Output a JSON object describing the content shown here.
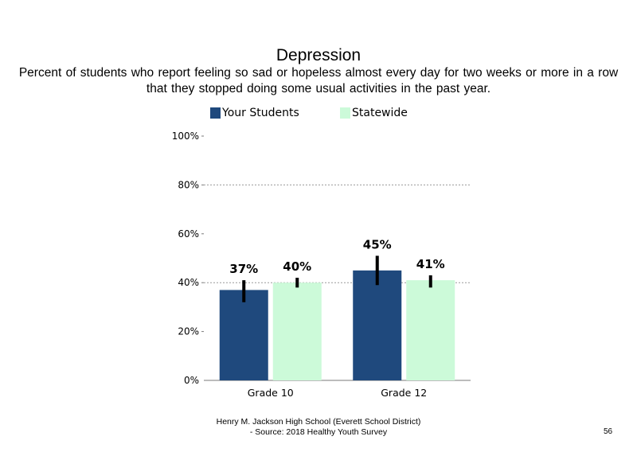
{
  "chart_data": {
    "type": "bar",
    "title": "Depression",
    "subtitle": "Percent of students who report feeling so sad or hopeless almost every day for two weeks or more in a row that they stopped doing some usual activities in the past year.",
    "categories": [
      "Grade 10",
      "Grade 12"
    ],
    "series": [
      {
        "name": "Your Students",
        "color": "#1f497d",
        "values": [
          37,
          45
        ],
        "labels": [
          "37%",
          "45%"
        ],
        "error_low": [
          32,
          39
        ],
        "error_high": [
          41,
          51
        ]
      },
      {
        "name": "Statewide",
        "color": "#ccfad9",
        "values": [
          40,
          41
        ],
        "labels": [
          "40%",
          "41%"
        ],
        "error_low": [
          38,
          38
        ],
        "error_high": [
          42,
          43
        ]
      }
    ],
    "yticks": [
      "0%",
      "20%",
      "40%",
      "60%",
      "80%",
      "100%"
    ],
    "ylim": [
      0,
      100
    ],
    "grid": true,
    "legend_position": "top"
  },
  "footer": {
    "line1": "Henry M. Jackson High School (Everett School District)",
    "line2": "- Source: 2018 Healthy Youth Survey"
  },
  "page_number": "56"
}
